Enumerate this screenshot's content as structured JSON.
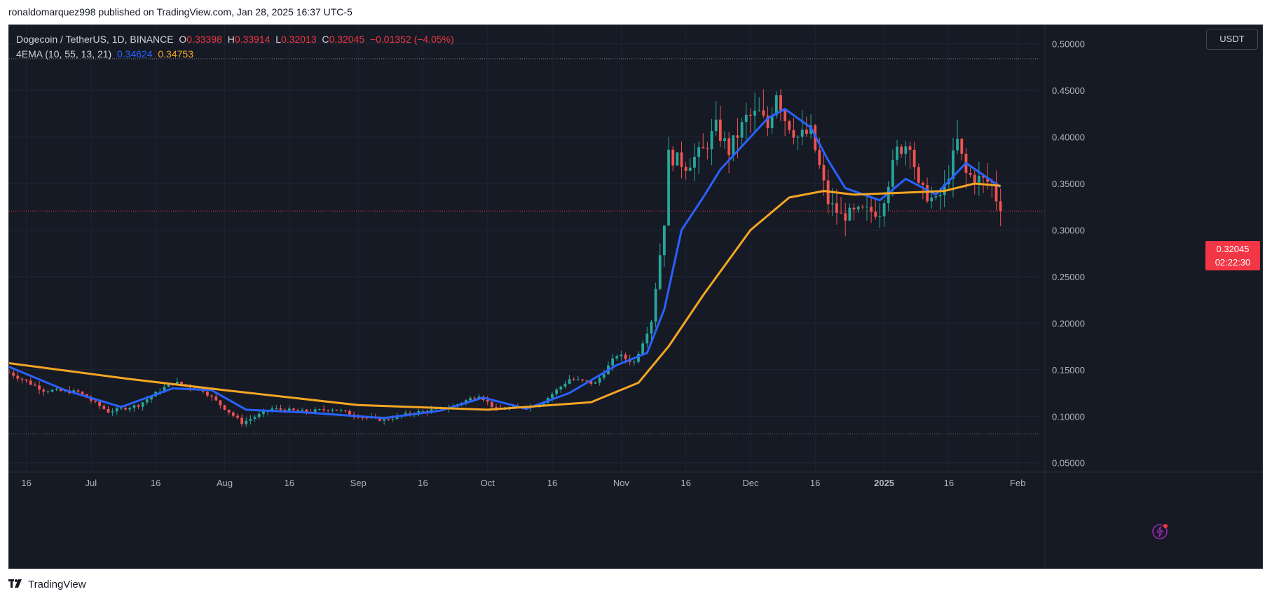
{
  "publish_line": "ronaldomarquez998 published on TradingView.com, Jan 28, 2025 16:37 UTC-5",
  "legend": {
    "symbol": "Dogecoin / TetherUS, 1D, BINANCE",
    "o_label": "O",
    "o_value": "0.33398",
    "h_label": "H",
    "h_value": "0.33914",
    "l_label": "L",
    "l_value": "0.32013",
    "c_label": "C",
    "c_value": "0.32045",
    "change": "−0.01352 (−4.05%)",
    "indicator": "4EMA (10, 55, 13, 21)",
    "ema_fast_value": "0.34624",
    "ema_slow_value": "0.34753"
  },
  "currency_button": "USDT",
  "last_price_badge": {
    "price": "0.32045",
    "countdown": "02:22:30"
  },
  "footer_brand": "TradingView",
  "colors": {
    "background": "#161a25",
    "up": "#26a69a",
    "down": "#ef5350",
    "ema_fast": "#2962ff",
    "ema_slow": "#f5a623",
    "badge": "#f23645"
  },
  "chart_data": {
    "type": "candlestick",
    "title": "Dogecoin / TetherUS, 1D, BINANCE",
    "ylim": [
      0.04,
      0.52
    ],
    "y_ticks": [
      "0.50000",
      "0.45000",
      "0.40000",
      "0.35000",
      "0.30000",
      "0.25000",
      "0.20000",
      "0.15000",
      "0.10000",
      "0.05000"
    ],
    "x_ticks": [
      "16",
      "Jul",
      "16",
      "Aug",
      "16",
      "Sep",
      "16",
      "Oct",
      "16",
      "Nov",
      "16",
      "Dec",
      "16",
      "2025",
      "16",
      "Feb"
    ],
    "x_range": [
      "2024-06-12",
      "2025-02-06"
    ],
    "last_date": "2025-01-28",
    "horizontal_levels": [
      0.484,
      0.081
    ],
    "current_price": 0.32045,
    "close_points": [
      [
        "2024-06-12",
        0.147
      ],
      [
        "2024-06-20",
        0.128
      ],
      [
        "2024-06-28",
        0.126
      ],
      [
        "2024-07-05",
        0.105
      ],
      [
        "2024-07-12",
        0.112
      ],
      [
        "2024-07-20",
        0.137
      ],
      [
        "2024-07-27",
        0.128
      ],
      [
        "2024-08-05",
        0.093
      ],
      [
        "2024-08-12",
        0.108
      ],
      [
        "2024-08-20",
        0.105
      ],
      [
        "2024-08-26",
        0.108
      ],
      [
        "2024-09-02",
        0.099
      ],
      [
        "2024-09-07",
        0.096
      ],
      [
        "2024-09-14",
        0.104
      ],
      [
        "2024-09-22",
        0.109
      ],
      [
        "2024-09-29",
        0.123
      ],
      [
        "2024-10-03",
        0.107
      ],
      [
        "2024-10-13",
        0.112
      ],
      [
        "2024-10-20",
        0.14
      ],
      [
        "2024-10-26",
        0.135
      ],
      [
        "2024-10-31",
        0.166
      ],
      [
        "2024-11-04",
        0.158
      ],
      [
        "2024-11-08",
        0.203
      ],
      [
        "2024-11-11",
        0.31
      ],
      [
        "2024-11-12",
        0.38
      ],
      [
        "2024-11-16",
        0.37
      ],
      [
        "2024-11-20",
        0.385
      ],
      [
        "2024-11-23",
        0.41
      ],
      [
        "2024-11-26",
        0.385
      ],
      [
        "2024-11-30",
        0.42
      ],
      [
        "2024-12-03",
        0.425
      ],
      [
        "2024-12-05",
        0.41
      ],
      [
        "2024-12-07",
        0.45
      ],
      [
        "2024-12-09",
        0.42
      ],
      [
        "2024-12-12",
        0.4
      ],
      [
        "2024-12-15",
        0.405
      ],
      [
        "2024-12-19",
        0.33
      ],
      [
        "2024-12-22",
        0.315
      ],
      [
        "2024-12-27",
        0.32
      ],
      [
        "2024-12-31",
        0.32
      ],
      [
        "2025-01-04",
        0.385
      ],
      [
        "2025-01-07",
        0.395
      ],
      [
        "2025-01-09",
        0.345
      ],
      [
        "2025-01-13",
        0.33
      ],
      [
        "2025-01-15",
        0.345
      ],
      [
        "2025-01-18",
        0.395
      ],
      [
        "2025-01-20",
        0.36
      ],
      [
        "2025-01-23",
        0.355
      ],
      [
        "2025-01-26",
        0.35
      ],
      [
        "2025-01-27",
        0.334
      ],
      [
        "2025-01-28",
        0.32045
      ]
    ],
    "series": [
      {
        "name": "0.34624",
        "color": "#2962ff",
        "points": [
          [
            "2024-06-12",
            0.153
          ],
          [
            "2024-06-25",
            0.128
          ],
          [
            "2024-07-08",
            0.11
          ],
          [
            "2024-07-20",
            0.13
          ],
          [
            "2024-07-29",
            0.128
          ],
          [
            "2024-08-06",
            0.107
          ],
          [
            "2024-08-20",
            0.104
          ],
          [
            "2024-09-07",
            0.098
          ],
          [
            "2024-09-20",
            0.106
          ],
          [
            "2024-09-30",
            0.12
          ],
          [
            "2024-10-10",
            0.108
          ],
          [
            "2024-10-20",
            0.125
          ],
          [
            "2024-10-31",
            0.155
          ],
          [
            "2024-11-07",
            0.168
          ],
          [
            "2024-11-11",
            0.215
          ],
          [
            "2024-11-15",
            0.3
          ],
          [
            "2024-11-20",
            0.335
          ],
          [
            "2024-11-24",
            0.365
          ],
          [
            "2024-11-30",
            0.395
          ],
          [
            "2024-12-05",
            0.42
          ],
          [
            "2024-12-09",
            0.43
          ],
          [
            "2024-12-15",
            0.41
          ],
          [
            "2024-12-19",
            0.375
          ],
          [
            "2024-12-23",
            0.345
          ],
          [
            "2024-12-31",
            0.332
          ],
          [
            "2025-01-06",
            0.355
          ],
          [
            "2025-01-13",
            0.338
          ],
          [
            "2025-01-20",
            0.372
          ],
          [
            "2025-01-28",
            0.34624
          ]
        ]
      },
      {
        "name": "0.34753",
        "color": "#f5a623",
        "points": [
          [
            "2024-06-12",
            0.157
          ],
          [
            "2024-07-10",
            0.14
          ],
          [
            "2024-08-01",
            0.128
          ],
          [
            "2024-09-01",
            0.112
          ],
          [
            "2024-10-01",
            0.107
          ],
          [
            "2024-10-25",
            0.115
          ],
          [
            "2024-11-05",
            0.136
          ],
          [
            "2024-11-12",
            0.175
          ],
          [
            "2024-11-20",
            0.23
          ],
          [
            "2024-12-01",
            0.3
          ],
          [
            "2024-12-10",
            0.335
          ],
          [
            "2024-12-18",
            0.342
          ],
          [
            "2024-12-25",
            0.338
          ],
          [
            "2025-01-05",
            0.34
          ],
          [
            "2025-01-15",
            0.342
          ],
          [
            "2025-01-22",
            0.35
          ],
          [
            "2025-01-28",
            0.34753
          ]
        ]
      }
    ]
  }
}
